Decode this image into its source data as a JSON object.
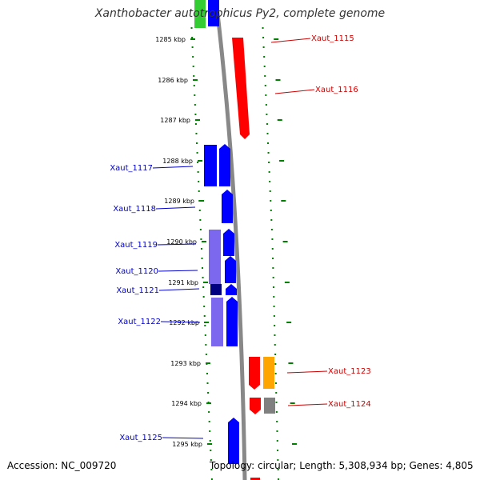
{
  "title": "Xanthobacter autotrophicus Py2, complete genome",
  "accession_label": "Accession: NC_009720",
  "summary_label": "Topology: circular; Length: 5,308,934 bp; Genes: 4,805",
  "colors": {
    "forward": "#0000ff",
    "forward_light": "#7b68ee",
    "forward_dark": "#000080",
    "reverse": "#ff0000",
    "orange": "#ffa500",
    "gray": "#808080",
    "green": "#33cc33",
    "ruler": "#008000",
    "backbone": "#888888"
  },
  "kbp_ticks": [
    "1285 kbp",
    "1286 kbp",
    "1287 kbp",
    "1288 kbp",
    "1289 kbp",
    "1290 kbp",
    "1291 kbp",
    "1292 kbp",
    "1293 kbp",
    "1294 kbp",
    "1295 kbp"
  ],
  "left_genes": [
    "Xaut_1117",
    "Xaut_1118",
    "Xaut_1119",
    "Xaut_1120",
    "Xaut_1121",
    "Xaut_1122",
    "Xaut_1125"
  ],
  "right_genes": [
    "Xaut_1115",
    "Xaut_1116",
    "Xaut_1123",
    "Xaut_1124"
  ]
}
